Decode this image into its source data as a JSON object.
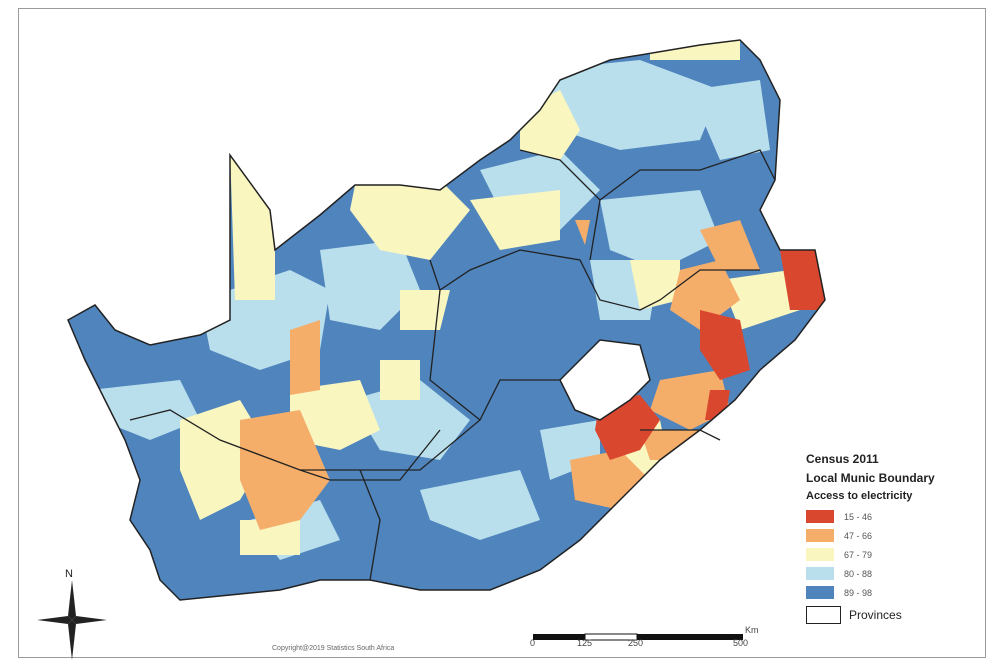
{
  "legend": {
    "title": "Census 2011",
    "subtitle": "Local Munic Boundary",
    "variable": "Access to electricity",
    "classes": [
      {
        "label": "15 - 46",
        "color": "#d9472f"
      },
      {
        "label": "47 - 66",
        "color": "#f5ad6a"
      },
      {
        "label": "67 - 79",
        "color": "#f9f6c0"
      },
      {
        "label": "80 - 88",
        "color": "#b9dfec"
      },
      {
        "label": "89 - 98",
        "color": "#4f84bd"
      }
    ],
    "provinces_label": "Provinces"
  },
  "scale_bar": {
    "unit": "Km",
    "ticks": [
      "0",
      "125",
      "250",
      "500"
    ]
  },
  "north_label": "N",
  "copyright": "Copyright@2019 Statistics South Africa"
}
